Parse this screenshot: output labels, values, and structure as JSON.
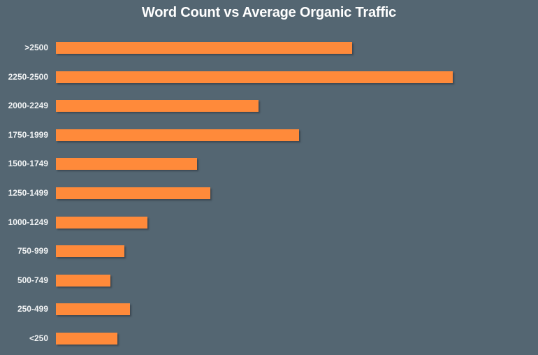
{
  "chart_data": {
    "type": "bar",
    "orientation": "horizontal",
    "title": "Word Count vs Average Organic Traffic",
    "xlabel": "",
    "ylabel": "",
    "grid": false,
    "legend": null,
    "axis_ticks_shown": false,
    "note": "No numeric axis shown; values are relative bar lengths in pixels (bar starts at x=80).",
    "categories": [
      ">2500",
      "2250-2500",
      "2000-2249",
      "1750-1999",
      "1500-1749",
      "1250-1499",
      "1000-1249",
      "750-999",
      "500-749",
      "250-499",
      "<250"
    ],
    "values": [
      424,
      568,
      290,
      348,
      202,
      221,
      131,
      98,
      78,
      106,
      88
    ],
    "colors": {
      "bar": "#ff8a3a",
      "background": "#546672",
      "text": "#ffffff"
    }
  }
}
